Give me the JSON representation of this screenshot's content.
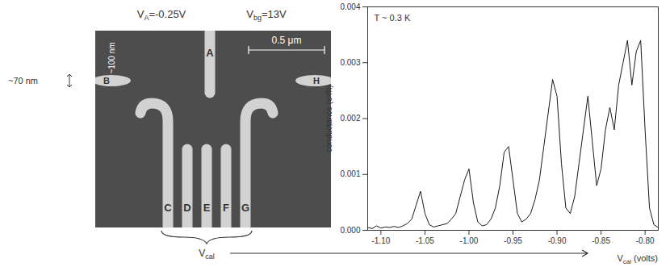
{
  "chart_data": {
    "type": "line",
    "color": "#1a1a1a",
    "x": [
      -1.115,
      -1.11,
      -1.105,
      -1.1,
      -1.095,
      -1.09,
      -1.085,
      -1.08,
      -1.075,
      -1.07,
      -1.065,
      -1.06,
      -1.055,
      -1.05,
      -1.045,
      -1.04,
      -1.035,
      -1.03,
      -1.025,
      -1.02,
      -1.015,
      -1.01,
      -1.005,
      -1.0,
      -0.995,
      -0.99,
      -0.985,
      -0.98,
      -0.975,
      -0.97,
      -0.965,
      -0.96,
      -0.955,
      -0.95,
      -0.945,
      -0.94,
      -0.935,
      -0.93,
      -0.925,
      -0.92,
      -0.915,
      -0.91,
      -0.905,
      -0.9,
      -0.895,
      -0.89,
      -0.885,
      -0.88,
      -0.875,
      -0.87,
      -0.865,
      -0.86,
      -0.855,
      -0.85,
      -0.845,
      -0.84,
      -0.835,
      -0.83,
      -0.825,
      -0.82,
      -0.815,
      -0.81,
      -0.805,
      -0.8,
      -0.795,
      -0.79,
      -0.785
    ],
    "values": [
      5e-05,
      3e-05,
      8e-05,
      4e-05,
      6e-05,
      5e-05,
      7e-05,
      5e-05,
      8e-05,
      0.00012,
      0.0002,
      0.00045,
      0.0007,
      0.0003,
      0.0001,
      6e-05,
      8e-05,
      0.0001,
      0.00012,
      0.0002,
      0.0003,
      0.0006,
      0.0009,
      0.0011,
      0.0005,
      0.00015,
      8e-05,
      0.0001,
      0.0002,
      0.0004,
      0.0008,
      0.0014,
      0.0015,
      0.0009,
      0.0003,
      0.00015,
      0.0002,
      0.0003,
      0.00055,
      0.0009,
      0.0015,
      0.0021,
      0.0027,
      0.0024,
      0.0012,
      0.0004,
      0.0003,
      0.0006,
      0.0012,
      0.0018,
      0.0024,
      0.0016,
      0.0008,
      0.0011,
      0.0018,
      0.0022,
      0.0018,
      0.0026,
      0.003,
      0.0034,
      0.0026,
      0.0032,
      0.0034,
      0.0018,
      0.0004,
      0.0001,
      5e-05
    ],
    "x_label": {
      "text": "V",
      "subscript": "cal",
      "suffix": " (volts)"
    },
    "y_label": "conductance (e²/h)",
    "xlim": [
      -1.115,
      -0.785
    ],
    "xticks": [
      {
        "value": -1.1,
        "label": "-1.10"
      },
      -1.05,
      {
        "value": -1.0,
        "label": "-1.00"
      },
      -0.95,
      {
        "value": -0.9,
        "label": "-0.90"
      },
      -0.85,
      {
        "value": -0.8,
        "label": "-0.80"
      }
    ],
    "ylim": [
      0,
      0.004
    ],
    "yticks": [
      {
        "value": 0,
        "label": "0.000"
      },
      0.001,
      0.002,
      0.003,
      0.004
    ],
    "annotations": [
      "T ~ 0.3 K"
    ],
    "grid": false
  },
  "diagram": {
    "gate_voltage": {
      "text": "V",
      "subscript": "A",
      "suffix": "=-0.25V"
    },
    "backgate_voltage": {
      "text": "V",
      "subscript": "bg",
      "suffix": "=13V"
    },
    "scale_bar": "0.5 μm",
    "gate_width": "~100 nm",
    "gap_width": "~70 nm",
    "gates": {
      "top": "A",
      "left": "B",
      "right": "H",
      "bottom": [
        "C",
        "D",
        "E",
        "F",
        "G"
      ]
    },
    "bracket_label": {
      "text": "V",
      "subscript": "cal"
    }
  }
}
